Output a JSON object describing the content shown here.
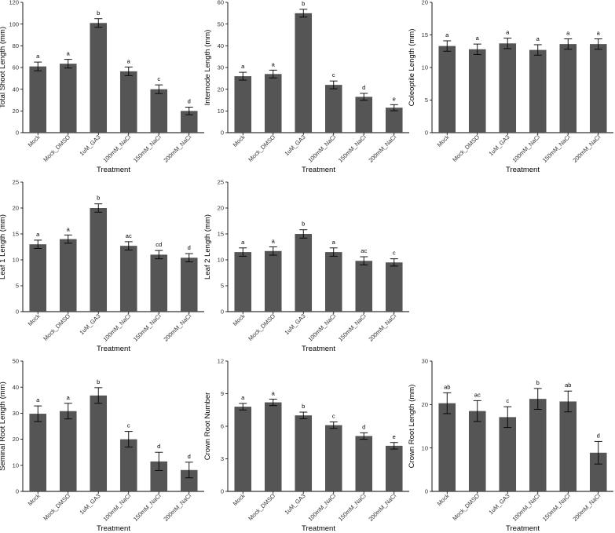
{
  "colors": {
    "bar": "#555555",
    "axis": "#000000",
    "error": "#000000"
  },
  "chart_data": [
    {
      "type": "bar",
      "xlabel": "Treatment",
      "ylabel": "Total Shoot Length (mm)",
      "ylim": [
        0,
        120
      ],
      "yticks": [
        0,
        20,
        40,
        60,
        80,
        100,
        120
      ],
      "categories": [
        "Mock",
        "Mock_DMSO",
        "1uM_GA3",
        "100mM_NaCl",
        "150mM_NaCl",
        "200mM_NaCl"
      ],
      "values": [
        61,
        63.5,
        101,
        56.5,
        40,
        20
      ],
      "errors": [
        4,
        4,
        4,
        4,
        4,
        3.5
      ],
      "letters": [
        "a",
        "a",
        "b",
        "a",
        "c",
        "d"
      ]
    },
    {
      "type": "bar",
      "xlabel": "Treatment",
      "ylabel": "Internode Length (mm)",
      "ylim": [
        0,
        60
      ],
      "yticks": [
        0,
        10,
        20,
        30,
        40,
        50,
        60
      ],
      "categories": [
        "Mock",
        "Mock_DMSO",
        "1uM_GA3",
        "100mM_NaCl",
        "150mM_NaCl",
        "200mM_NaCl"
      ],
      "values": [
        26,
        27,
        55,
        22,
        16.5,
        11.5
      ],
      "errors": [
        1.8,
        1.8,
        1.8,
        1.8,
        1.6,
        1.4
      ],
      "letters": [
        "a",
        "a",
        "b",
        "c",
        "d",
        "e"
      ]
    },
    {
      "type": "bar",
      "xlabel": "Treatment",
      "ylabel": "Coleoptile Length (mm)",
      "ylim": [
        0,
        20
      ],
      "yticks": [
        0,
        5,
        10,
        15,
        20
      ],
      "categories": [
        "Mock",
        "Mock_DMSO",
        "1uM_GA3",
        "100mM_NaCl",
        "150mM_NaCl",
        "200mM_NaCl"
      ],
      "values": [
        13.3,
        12.8,
        13.7,
        12.7,
        13.6,
        13.6
      ],
      "errors": [
        0.8,
        0.8,
        0.8,
        0.8,
        0.8,
        0.8
      ],
      "letters": [
        "a",
        "a",
        "a",
        "a",
        "a",
        "a"
      ]
    },
    {
      "type": "bar",
      "xlabel": "Treatment",
      "ylabel": "Leaf 1 Length (mm)",
      "ylim": [
        0,
        25
      ],
      "yticks": [
        0,
        5,
        10,
        15,
        20,
        25
      ],
      "categories": [
        "Mock",
        "Mock_DMSO",
        "1uM_GA3",
        "100mM_NaCl",
        "150mM_NaCl",
        "200mM_NaCl"
      ],
      "values": [
        13,
        14,
        20,
        12.7,
        11,
        10.4
      ],
      "errors": [
        0.8,
        0.8,
        0.8,
        0.8,
        0.8,
        0.8
      ],
      "letters": [
        "a",
        "a",
        "b",
        "ac",
        "cd",
        "d"
      ]
    },
    {
      "type": "bar",
      "xlabel": "Treatment",
      "ylabel": "Leaf 2 Length (mm)",
      "ylim": [
        0,
        25
      ],
      "yticks": [
        0,
        5,
        10,
        15,
        20,
        25
      ],
      "categories": [
        "Mock",
        "Mock_DMSO",
        "1uM_GA3",
        "100mM_NaCl",
        "150mM_NaCl",
        "200mM_NaCl"
      ],
      "values": [
        11.5,
        11.7,
        15,
        11.5,
        9.8,
        9.5
      ],
      "errors": [
        0.8,
        0.8,
        0.8,
        0.8,
        0.8,
        0.7
      ],
      "letters": [
        "a",
        "a",
        "b",
        "a",
        "ac",
        "c"
      ]
    },
    {
      "type": "bar",
      "xlabel": "Treatment",
      "ylabel": "Seminal Root Length (mm)",
      "ylim": [
        0,
        50
      ],
      "yticks": [
        0,
        10,
        20,
        30,
        40,
        50
      ],
      "categories": [
        "Mock",
        "Mock_DMSO",
        "1uM_GA3",
        "100mM_NaCl",
        "150mM_NaCl",
        "200mM_NaCl"
      ],
      "values": [
        29.8,
        30.8,
        36.8,
        20,
        11.5,
        8.2
      ],
      "errors": [
        3,
        3,
        3,
        3,
        3.5,
        3
      ],
      "letters": [
        "a",
        "a",
        "b",
        "c",
        "d",
        "d"
      ]
    },
    {
      "type": "bar",
      "xlabel": "Treatment",
      "ylabel": "Crown Root Number",
      "ylim": [
        0,
        12
      ],
      "yticks": [
        0,
        3,
        6,
        9,
        12
      ],
      "categories": [
        "Mock",
        "Mock_DMSO",
        "1uM_GA3",
        "100mM_NaCl",
        "150mM_NaCl",
        "200mM_NaCl"
      ],
      "values": [
        7.8,
        8.2,
        7,
        6.1,
        5.1,
        4.2
      ],
      "errors": [
        0.3,
        0.3,
        0.3,
        0.3,
        0.3,
        0.3
      ],
      "letters": [
        "a",
        "a",
        "b",
        "c",
        "d",
        "e"
      ]
    },
    {
      "type": "bar",
      "xlabel": "Treatment",
      "ylabel": "Crown Root Length (mm)",
      "ylim": [
        0,
        30
      ],
      "yticks": [
        0,
        10,
        20,
        30
      ],
      "categories": [
        "Mock",
        "Mock_DMSO",
        "1uM_GA3",
        "100mM_NaCl",
        "150mM_NaCl",
        "200mM_NaCl"
      ],
      "values": [
        20.3,
        18.5,
        17.1,
        21.3,
        20.7,
        8.9
      ],
      "errors": [
        2.4,
        2.4,
        2.4,
        2.4,
        2.4,
        2.6
      ],
      "letters": [
        "ab",
        "ac",
        "c",
        "b",
        "ab",
        "d"
      ]
    }
  ]
}
